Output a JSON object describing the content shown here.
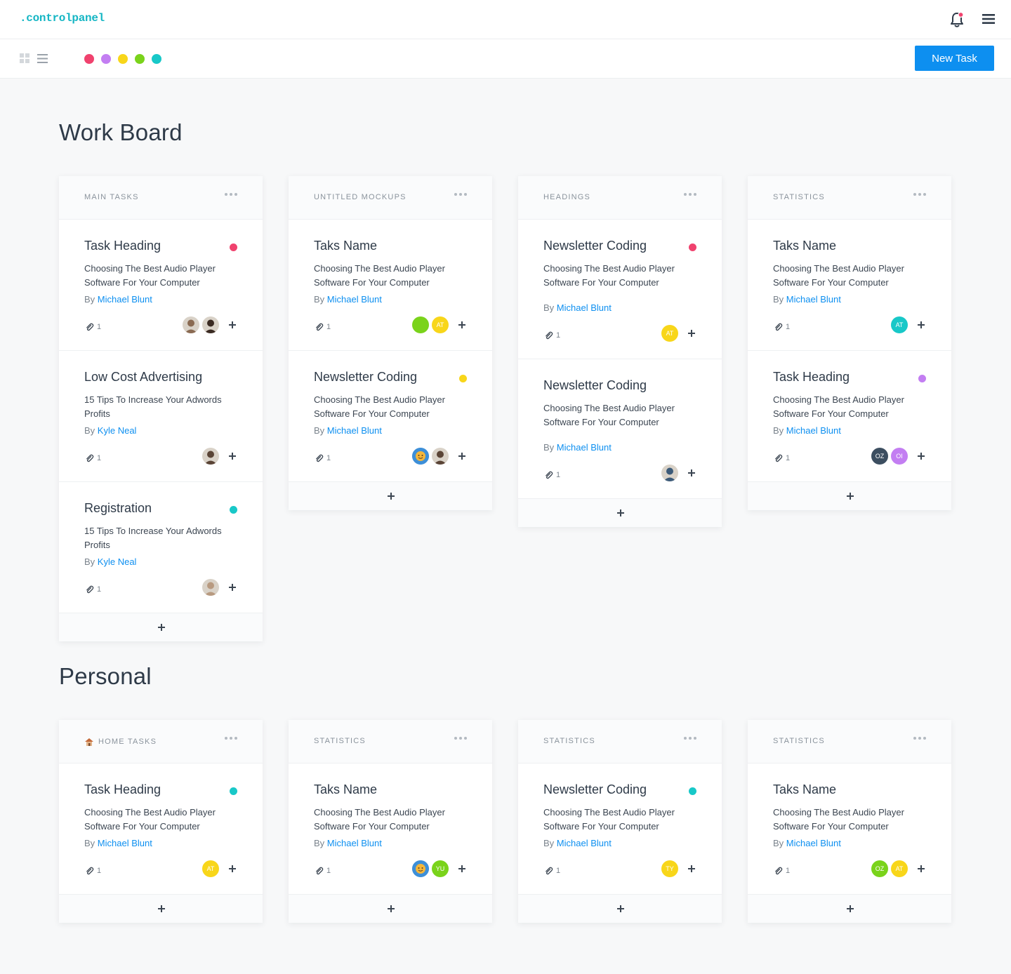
{
  "brand": ".controlpanel",
  "toolbar": {
    "new_task_label": "New Task",
    "color_filters": [
      "#f0426e",
      "#c37ef2",
      "#f8d61a",
      "#7ad31b",
      "#18c8c8"
    ]
  },
  "sections": [
    {
      "title": "Work Board",
      "columns": [
        {
          "title": "MAIN TASKS",
          "cards": [
            {
              "title": "Task Heading",
              "dot": "#f0426e",
              "desc": "Choosing The Best Audio Player Software For Your Computer",
              "by": "By",
              "author": "Michael Blunt",
              "attachments": "1",
              "avatars": [
                {
                  "type": "photo",
                  "tone": "#8a6a52"
                },
                {
                  "type": "photo",
                  "tone": "#3a2a22"
                }
              ]
            },
            {
              "title": "Low Cost Advertising",
              "dot": null,
              "desc": "15 Tips To Increase Your Adwords Profits",
              "by": "By",
              "author": "Kyle Neal",
              "attachments": "1",
              "avatars": [
                {
                  "type": "photo",
                  "tone": "#5a4436"
                }
              ]
            },
            {
              "title": "Registration",
              "dot": "#18c8c8",
              "desc": "15 Tips To Increase Your Adwords Profits",
              "by": "By",
              "author": "Kyle Neal",
              "attachments": "1",
              "avatars": [
                {
                  "type": "photo",
                  "tone": "#b89a80"
                }
              ]
            }
          ]
        },
        {
          "title": "UNTITLED MOCKUPS",
          "cards": [
            {
              "title": "Taks Name",
              "dot": null,
              "desc": "Choosing The Best Audio Player Software For Your Computer",
              "by": "By",
              "author": "Michael Blunt",
              "attachments": "1",
              "avatars": [
                {
                  "type": "color",
                  "color": "#7ad31b",
                  "initials": ""
                },
                {
                  "type": "color",
                  "color": "#f8d61a",
                  "initials": "AT"
                }
              ]
            },
            {
              "title": "Newsletter Coding",
              "dot": "#f8d61a",
              "desc": "Choosing The Best Audio Player Software For Your Computer",
              "by": "By",
              "author": "Michael Blunt",
              "attachments": "1",
              "avatars": [
                {
                  "type": "emoji",
                  "color": "#3d8fd8"
                },
                {
                  "type": "photo",
                  "tone": "#5a4436"
                }
              ]
            }
          ]
        },
        {
          "title": "HEADINGS",
          "cards": [
            {
              "title": "Newsletter Coding",
              "dot": "#f0426e",
              "desc": "Choosing The Best Audio Player Software For Your Computer",
              "by": "By",
              "author": "Michael Blunt",
              "attachments": "1",
              "avatars": [
                {
                  "type": "color",
                  "color": "#f8d61a",
                  "initials": "AT"
                }
              ]
            },
            {
              "title": "Newsletter Coding",
              "dot": null,
              "desc": "Choosing The Best Audio Player Software For Your Computer",
              "by": "By",
              "author": "Michael Blunt",
              "attachments": "1",
              "avatars": [
                {
                  "type": "photo",
                  "tone": "#3c5a78"
                }
              ]
            }
          ]
        },
        {
          "title": "STATISTICS",
          "cards": [
            {
              "title": "Taks Name",
              "dot": null,
              "desc": "Choosing The Best Audio Player Software For Your Computer",
              "by": "By",
              "author": "Michael Blunt",
              "attachments": "1",
              "avatars": [
                {
                  "type": "color",
                  "color": "#18c8c8",
                  "initials": "AT"
                }
              ]
            },
            {
              "title": "Task Heading",
              "dot": "#c37ef2",
              "desc": "Choosing The Best Audio Player Software For Your Computer",
              "by": "By",
              "author": "Michael Blunt",
              "attachments": "1",
              "avatars": [
                {
                  "type": "color",
                  "color": "#3c4e60",
                  "initials": "OZ"
                },
                {
                  "type": "color",
                  "color": "#c37ef2",
                  "initials": "OI"
                }
              ]
            }
          ]
        }
      ]
    },
    {
      "title": "Personal",
      "columns": [
        {
          "title": "HOME TASKS",
          "icon": "house-icon",
          "cards": [
            {
              "title": "Task Heading",
              "dot": "#18c8c8",
              "desc": "Choosing The Best Audio Player Software For Your Computer",
              "by": "By",
              "author": "Michael Blunt",
              "attachments": "1",
              "avatars": [
                {
                  "type": "color",
                  "color": "#f8d61a",
                  "initials": "AT"
                }
              ]
            }
          ]
        },
        {
          "title": "STATISTICS",
          "cards": [
            {
              "title": "Taks Name",
              "dot": null,
              "desc": "Choosing The Best Audio Player Software For Your Computer",
              "by": "By",
              "author": "Michael Blunt",
              "attachments": "1",
              "avatars": [
                {
                  "type": "emoji",
                  "color": "#3d8fd8"
                },
                {
                  "type": "color",
                  "color": "#7ad31b",
                  "initials": "YU"
                }
              ]
            }
          ]
        },
        {
          "title": "STATISTICS",
          "cards": [
            {
              "title": "Newsletter Coding",
              "dot": "#18c8c8",
              "desc": "Choosing The Best Audio Player Software For Your Computer",
              "by": "By",
              "author": "Michael Blunt",
              "attachments": "1",
              "avatars": [
                {
                  "type": "color",
                  "color": "#f8d61a",
                  "initials": "TY"
                }
              ]
            }
          ]
        },
        {
          "title": "STATISTICS",
          "cards": [
            {
              "title": "Taks Name",
              "dot": null,
              "desc": "Choosing The Best Audio Player Software For Your Computer",
              "by": "By",
              "author": "Michael Blunt",
              "attachments": "1",
              "avatars": [
                {
                  "type": "color",
                  "color": "#7ad31b",
                  "initials": "OZ"
                },
                {
                  "type": "color",
                  "color": "#f8d61a",
                  "initials": "AT"
                }
              ]
            }
          ]
        }
      ]
    }
  ]
}
